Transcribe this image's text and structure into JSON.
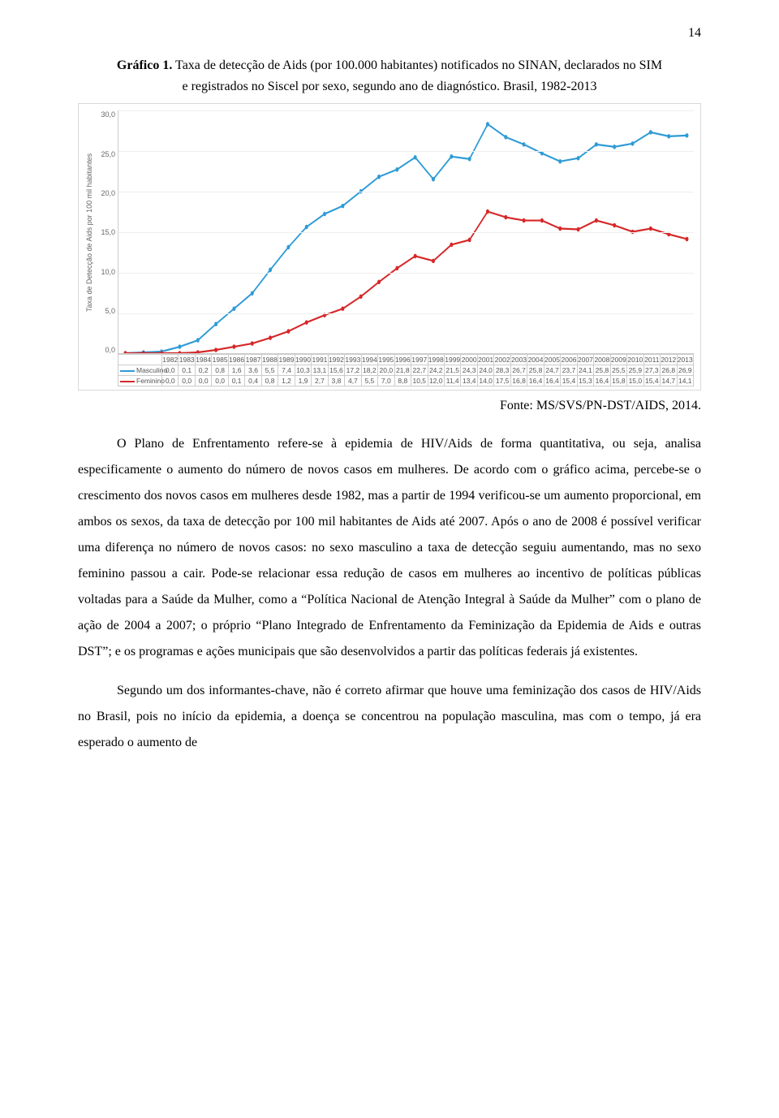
{
  "page_number": "14",
  "caption": {
    "prefix_bold": "Gráfico 1.",
    "line1_rest": "Taxa de detecção de Aids (por 100.000 habitantes) notificados no SINAN, declarados no SIM",
    "line2": "e registrados no Siscel por sexo, segundo ano de diagnóstico. Brasil, 1982-2013"
  },
  "chart": {
    "type": "line",
    "y_axis_label": "Taxa de Detecção de Aids por 100 mil habitantes",
    "ylim": [
      0,
      30
    ],
    "ytick_step": 5,
    "yticks": [
      "30,0",
      "25,0",
      "20,0",
      "15,0",
      "10,0",
      "5,0",
      "0,0"
    ],
    "years": [
      "1982",
      "1983",
      "1984",
      "1985",
      "1986",
      "1987",
      "1988",
      "1989",
      "1990",
      "1991",
      "1992",
      "1993",
      "1994",
      "1995",
      "1996",
      "1997",
      "1998",
      "1999",
      "2000",
      "2001",
      "2002",
      "2003",
      "2004",
      "2005",
      "2006",
      "2007",
      "2008",
      "2009",
      "2010",
      "2011",
      "2012",
      "2013"
    ],
    "series": [
      {
        "name": "Masculino",
        "color": "#2e9bd6",
        "values_display": [
          "0,0",
          "0,1",
          "0,2",
          "0,8",
          "1,6",
          "3,6",
          "5,5",
          "7,4",
          "10,3",
          "13,1",
          "15,6",
          "17,2",
          "18,2",
          "20,0",
          "21,8",
          "22,7",
          "24,2",
          "21,5",
          "24,3",
          "24,0",
          "28,3",
          "26,7",
          "25,8",
          "24,7",
          "23,7",
          "24,1",
          "25,8",
          "25,5",
          "25,9",
          "27,3",
          "26,8",
          "26,9"
        ],
        "values_numeric": [
          0.0,
          0.1,
          0.2,
          0.8,
          1.6,
          3.6,
          5.5,
          7.4,
          10.3,
          13.1,
          15.6,
          17.2,
          18.2,
          20.0,
          21.8,
          22.7,
          24.2,
          21.5,
          24.3,
          24.0,
          28.3,
          26.7,
          25.8,
          24.7,
          23.7,
          24.1,
          25.8,
          25.5,
          25.9,
          27.3,
          26.8,
          26.9
        ]
      },
      {
        "name": "Feminino",
        "color": "#d62728",
        "values_display": [
          "0,0",
          "0,0",
          "0,0",
          "0,0",
          "0,1",
          "0,4",
          "0,8",
          "1,2",
          "1,9",
          "2,7",
          "3,8",
          "4,7",
          "5,5",
          "7,0",
          "8,8",
          "10,5",
          "12,0",
          "11,4",
          "13,4",
          "14,0",
          "17,5",
          "16,8",
          "16,4",
          "16,4",
          "15,4",
          "15,3",
          "16,4",
          "15,8",
          "15,0",
          "15,4",
          "14,7",
          "14,1"
        ],
        "values_numeric": [
          0.0,
          0.0,
          0.0,
          0.0,
          0.1,
          0.4,
          0.8,
          1.2,
          1.9,
          2.7,
          3.8,
          4.7,
          5.5,
          7.0,
          8.8,
          10.5,
          12.0,
          11.4,
          13.4,
          14.0,
          17.5,
          16.8,
          16.4,
          16.4,
          15.4,
          15.3,
          16.4,
          15.8,
          15.0,
          15.4,
          14.7,
          14.1
        ]
      }
    ],
    "line_width": 2.2,
    "marker_radius": 2.8,
    "background_color": "#ffffff",
    "grid_color": "#eeeeee",
    "axis_color": "#cccccc",
    "tick_font_size": 9,
    "tick_font_color": "#666666"
  },
  "source_label": "Fonte: MS/SVS/PN-DST/AIDS, 2014.",
  "paragraphs": [
    "O Plano de Enfrentamento refere-se à epidemia de HIV/Aids de forma quantitativa, ou seja, analisa especificamente o aumento do número de novos casos em mulheres. De acordo com o gráfico acima, percebe-se o crescimento dos novos casos em mulheres desde 1982, mas a partir de 1994 verificou-se um aumento proporcional, em ambos os sexos, da taxa de detecção por 100 mil habitantes de Aids até 2007. Após o ano de 2008 é possível verificar uma diferença no número de novos casos: no sexo masculino a taxa de detecção seguiu aumentando, mas no sexo feminino passou a cair. Pode-se relacionar essa redução de casos em mulheres ao incentivo de políticas públicas voltadas para a Saúde da Mulher, como a “Política Nacional de Atenção Integral à Saúde da Mulher” com o plano de ação de 2004 a 2007; o próprio “Plano Integrado de Enfrentamento da Feminização da Epidemia de Aids e outras DST”; e os programas e ações municipais que são desenvolvidos a partir das políticas federais já existentes.",
    "Segundo um dos informantes-chave, não é correto afirmar que houve uma feminização dos casos de HIV/Aids no Brasil, pois no início da epidemia, a doença se concentrou na população masculina, mas com o tempo, já era esperado o aumento de"
  ]
}
